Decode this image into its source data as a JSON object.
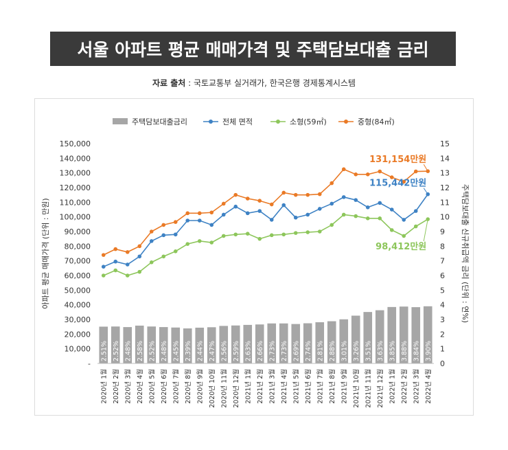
{
  "title": "서울 아파트 평균 매매가격 및 주택담보대출 금리",
  "source": {
    "label": "자료 출처",
    "sep": " : ",
    "text": "국토교통부 실거래가, 한국은행 경제통계시스템"
  },
  "colors": {
    "bar": "#a6a6a6",
    "total": "#3e82c4",
    "small": "#8dc65b",
    "medium": "#ea7a26",
    "title_bg": "#3a3a3a"
  },
  "chart_data": {
    "type": "bar+line",
    "title": "서울 아파트 평균 매매가격 및 주택담보대출 금리",
    "ylabel_left": "아파트 평균 매매가격 (단위 : 만원)",
    "ylabel_right": "주택담보대출 신규취급액 금리 (단위 : 연%)",
    "ylim_left": [
      0,
      150000
    ],
    "ylim_right": [
      0,
      15
    ],
    "left_ticks": [
      "-",
      "10,000",
      "20,000",
      "30,000",
      "40,000",
      "50,000",
      "60,000",
      "70,000",
      "80,000",
      "90,000",
      "100,000",
      "110,000",
      "120,000",
      "130,000",
      "140,000",
      "150,000"
    ],
    "right_ticks": [
      "0",
      "1",
      "2",
      "3",
      "4",
      "5",
      "6",
      "7",
      "8",
      "9",
      "10",
      "11",
      "12",
      "13",
      "14",
      "15"
    ],
    "legend_position": "top",
    "categories": [
      "2020년 1월",
      "2020년 2월",
      "2020년 3월",
      "2020년 4월",
      "2020년 5월",
      "2020년 6월",
      "2020년 7월",
      "2020년 8월",
      "2020년 9월",
      "2020년 10월",
      "2020년 11월",
      "2020년 12월",
      "2021년 1월",
      "2021년 2월",
      "2021년 3월",
      "2021년 4월",
      "2021년 5월",
      "2021년 6월",
      "2021년 7월",
      "2021년 8월",
      "2021년 9월",
      "2021년 10월",
      "2021년 11월",
      "2021년 12월",
      "2022년 1월",
      "2022년 2월",
      "2022년 3월",
      "2022년 4월"
    ],
    "bar_series": {
      "name": "주택담보대출금리",
      "values": [
        2.51,
        2.52,
        2.48,
        2.58,
        2.52,
        2.48,
        2.45,
        2.39,
        2.44,
        2.47,
        2.56,
        2.59,
        2.63,
        2.66,
        2.73,
        2.73,
        2.69,
        2.74,
        2.81,
        2.88,
        3.01,
        3.26,
        3.51,
        3.63,
        3.85,
        3.88,
        3.84,
        3.9
      ],
      "labels": [
        "2.51%",
        "2.52%",
        "2.48%",
        "2.58%",
        "2.52%",
        "2.48%",
        "2.45%",
        "2.39%",
        "2.44%",
        "2.47%",
        "2.56%",
        "2.59%",
        "2.63%",
        "2.66%",
        "2.73%",
        "2.73%",
        "2.69%",
        "2.74%",
        "2.81%",
        "2.88%",
        "3.01%",
        "3.26%",
        "3.51%",
        "3.63%",
        "3.85%",
        "3.88%",
        "3.84%",
        "3.90%"
      ]
    },
    "line_series": [
      {
        "name": "전체 면적",
        "color_key": "total",
        "values": [
          66000,
          69500,
          67500,
          73000,
          83500,
          87500,
          88000,
          97500,
          97500,
          94500,
          101500,
          107000,
          102500,
          104000,
          98000,
          108000,
          99500,
          101500,
          105500,
          109000,
          113500,
          111500,
          106500,
          109500,
          105000,
          98000,
          104000,
          115442
        ],
        "end_label": "115,442만원"
      },
      {
        "name": "소형(59㎡)",
        "color_key": "small",
        "values": [
          60000,
          63500,
          60000,
          62500,
          69000,
          73000,
          76500,
          81500,
          83500,
          82500,
          87000,
          88000,
          88500,
          85000,
          87500,
          88000,
          89000,
          89500,
          90000,
          94500,
          101500,
          100500,
          99000,
          99000,
          91000,
          87000,
          93500,
          98412
        ],
        "end_label": "98,412만원"
      },
      {
        "name": "중형(84㎡)",
        "color_key": "medium",
        "values": [
          74000,
          78000,
          76000,
          80000,
          90000,
          94500,
          96500,
          102500,
          102500,
          103000,
          109000,
          115000,
          112500,
          111000,
          108500,
          116500,
          115000,
          115000,
          115500,
          123000,
          132500,
          129000,
          129000,
          131000,
          127000,
          124000,
          131000,
          131154
        ],
        "end_label": "131,154만원"
      }
    ]
  }
}
